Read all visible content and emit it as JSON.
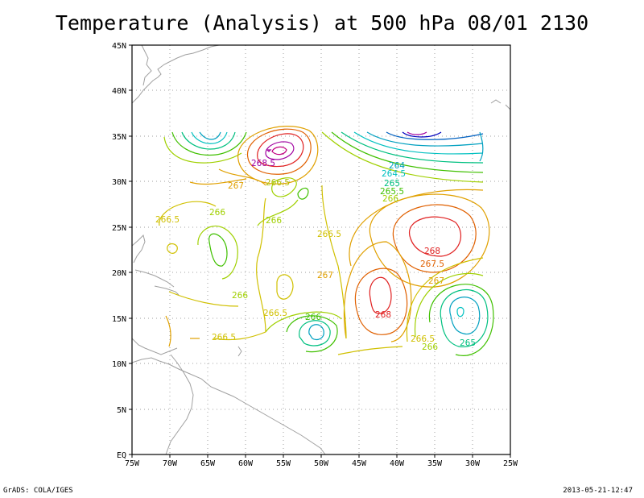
{
  "title": "Temperature (Analysis) at 500 hPa 08/01 2130",
  "footer": {
    "left": "GrADS: COLA/IGES",
    "right": "2013-05-21-12:47"
  },
  "axes": {
    "lat_ticks": [
      "45N",
      "40N",
      "35N",
      "30N",
      "25N",
      "20N",
      "15N",
      "10N",
      "5N",
      "EQ"
    ],
    "lon_ticks": [
      "75W",
      "70W",
      "65W",
      "60W",
      "55W",
      "50W",
      "45W",
      "40W",
      "35W",
      "30W",
      "25W"
    ]
  },
  "contour_labels": [
    {
      "text": "268.5",
      "color": "#a000a0"
    },
    {
      "text": "267",
      "color": "#e0a000"
    },
    {
      "text": "266.5",
      "color": "#b0c000"
    },
    {
      "text": "264",
      "color": "#00a0c0"
    },
    {
      "text": "264.5",
      "color": "#00c0c0"
    },
    {
      "text": "265",
      "color": "#00c080"
    },
    {
      "text": "265.5",
      "color": "#40c000"
    },
    {
      "text": "266",
      "color": "#a0d000"
    },
    {
      "text": "266.5",
      "color": "#d0c000"
    },
    {
      "text": "266",
      "color": "#a0d000"
    },
    {
      "text": "266",
      "color": "#a0d000"
    },
    {
      "text": "266.5",
      "color": "#d0c000"
    },
    {
      "text": "268",
      "color": "#e02020"
    },
    {
      "text": "267.5",
      "color": "#e06000"
    },
    {
      "text": "267",
      "color": "#e0a000"
    },
    {
      "text": "267",
      "color": "#e0a000"
    },
    {
      "text": "266",
      "color": "#a0d000"
    },
    {
      "text": "266.5",
      "color": "#d0c000"
    },
    {
      "text": "266",
      "color": "#40c000"
    },
    {
      "text": "268",
      "color": "#e02020"
    },
    {
      "text": "266.5",
      "color": "#d0c000"
    },
    {
      "text": "266",
      "color": "#a0d000"
    },
    {
      "text": "265",
      "color": "#00c080"
    },
    {
      "text": "266.5",
      "color": "#d0c000"
    }
  ]
}
